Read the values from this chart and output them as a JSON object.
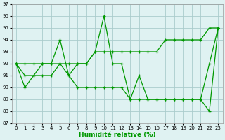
{
  "x": [
    0,
    1,
    2,
    3,
    4,
    5,
    6,
    7,
    8,
    9,
    10,
    11,
    12,
    13,
    14,
    15,
    16,
    17,
    18,
    19,
    20,
    21,
    22,
    23
  ],
  "y_jagged": [
    92,
    90,
    91,
    92,
    92,
    94,
    91,
    92,
    92,
    93,
    96,
    92,
    92,
    89,
    91,
    89,
    89,
    89,
    89,
    89,
    89,
    89,
    92,
    95
  ],
  "y_trend": [
    92,
    91,
    91,
    91,
    91,
    92,
    91,
    90,
    90,
    90,
    90,
    90,
    90,
    89,
    89,
    89,
    89,
    89,
    89,
    89,
    89,
    89,
    88,
    95
  ],
  "y_upper": [
    92,
    92,
    92,
    92,
    92,
    92,
    92,
    92,
    92,
    93,
    93,
    93,
    93,
    93,
    93,
    93,
    93,
    94,
    94,
    94,
    94,
    94,
    95,
    95
  ],
  "line_color": "#009900",
  "bg_color": "#dff2f2",
  "grid_color": "#aacccc",
  "xlabel": "Humidité relative (%)",
  "ylim": [
    87,
    97
  ],
  "xlim": [
    -0.5,
    23.5
  ],
  "yticks": [
    87,
    88,
    89,
    90,
    91,
    92,
    93,
    94,
    95,
    96,
    97
  ],
  "xticks": [
    0,
    1,
    2,
    3,
    4,
    5,
    6,
    7,
    8,
    9,
    10,
    11,
    12,
    13,
    14,
    15,
    16,
    17,
    18,
    19,
    20,
    21,
    22,
    23
  ]
}
